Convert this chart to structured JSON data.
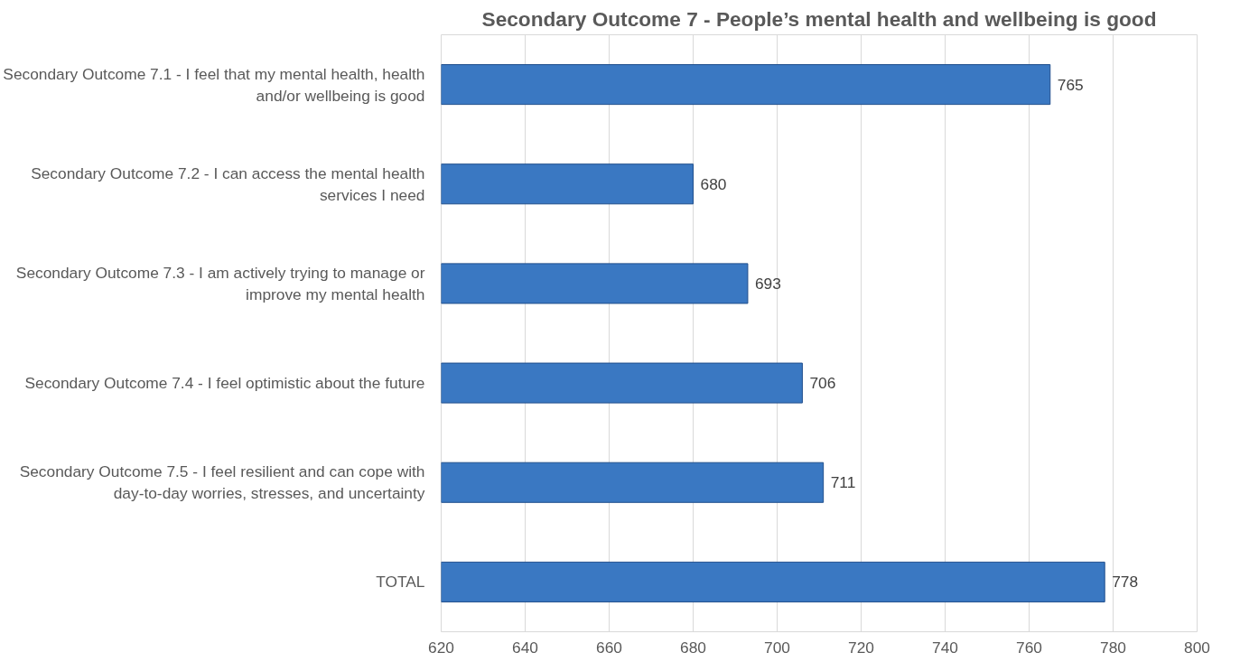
{
  "chart_data": {
    "type": "bar",
    "orientation": "horizontal",
    "title": "Secondary Outcome 7 - People’s mental health and wellbeing is good",
    "categories": [
      "Secondary Outcome 7.1 - I feel that my mental health, health and/or wellbeing is good",
      "Secondary Outcome 7.2 - I can access the mental health services I need",
      "Secondary Outcome 7.3 - I am actively trying to manage or improve my mental health",
      "Secondary Outcome 7.4 - I feel optimistic about the future",
      "Secondary Outcome 7.5 - I feel resilient and can cope with day-to-day worries, stresses, and uncertainty",
      "TOTAL"
    ],
    "values": [
      765,
      680,
      693,
      706,
      711,
      778
    ],
    "color": "#3a78c2",
    "xlim": [
      620,
      800
    ],
    "xticks": [
      620,
      640,
      660,
      680,
      700,
      720,
      740,
      760,
      780,
      800
    ],
    "grid": "x",
    "data_labels": true
  }
}
